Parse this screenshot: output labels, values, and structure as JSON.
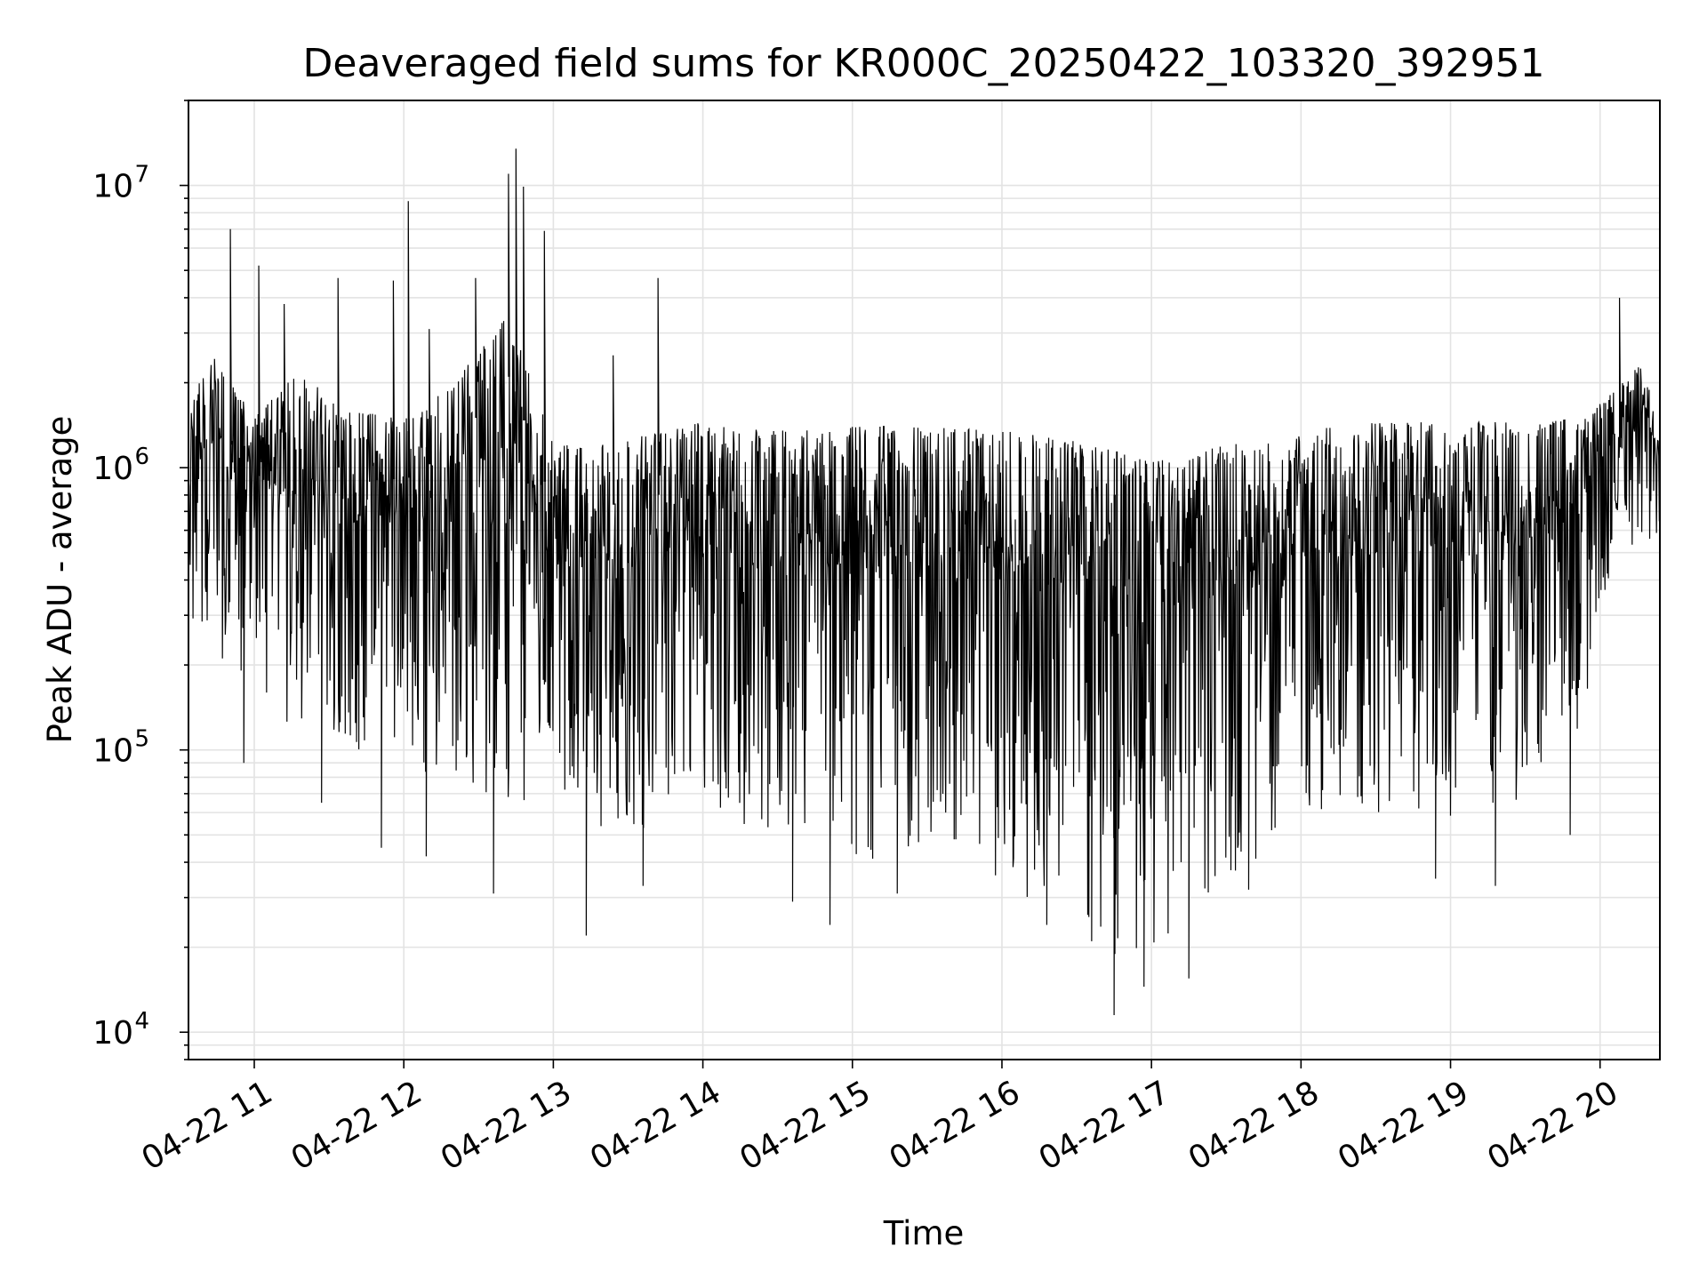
{
  "chart_data": {
    "type": "line",
    "title": "Deaveraged field sums for KR000C_20250422_103320_392951",
    "xlabel": "Time",
    "ylabel": "Peak ADU - average",
    "x_ticks": [
      "04-22 11",
      "04-22 12",
      "04-22 13",
      "04-22 14",
      "04-22 15",
      "04-22 16",
      "04-22 17",
      "04-22 18",
      "04-22 19",
      "04-22 20"
    ],
    "x_tick_hours": [
      11,
      12,
      13,
      14,
      15,
      16,
      17,
      18,
      19,
      20
    ],
    "xlim_hours": [
      10.56,
      20.4
    ],
    "y_scale": "log",
    "ylim": [
      8000,
      20000000
    ],
    "y_ticks": [
      {
        "base": "10",
        "exp": "4",
        "value": 10000
      },
      {
        "base": "10",
        "exp": "5",
        "value": 100000
      },
      {
        "base": "10",
        "exp": "6",
        "value": 1000000
      },
      {
        "base": "10",
        "exp": "7",
        "value": 10000000
      }
    ],
    "grid": true,
    "line_color": "#000000",
    "series": [
      {
        "envelope_top": [
          [
            10.56,
            1500000
          ],
          [
            10.7,
            2600000
          ],
          [
            11.0,
            1500000
          ],
          [
            11.3,
            2200000
          ],
          [
            11.6,
            1600000
          ],
          [
            12.0,
            1500000
          ],
          [
            12.3,
            1900000
          ],
          [
            12.7,
            3500000
          ],
          [
            13.0,
            1200000
          ],
          [
            13.3,
            1200000
          ],
          [
            13.6,
            1300000
          ],
          [
            14.0,
            1450000
          ],
          [
            14.5,
            1350000
          ],
          [
            15.0,
            1400000
          ],
          [
            15.5,
            1400000
          ],
          [
            16.0,
            1350000
          ],
          [
            16.5,
            1250000
          ],
          [
            17.0,
            1050000
          ],
          [
            17.5,
            1200000
          ],
          [
            18.0,
            1350000
          ],
          [
            18.5,
            1450000
          ],
          [
            19.0,
            1450000
          ],
          [
            19.5,
            1450000
          ],
          [
            19.9,
            1500000
          ],
          [
            20.1,
            1900000
          ],
          [
            20.3,
            2400000
          ],
          [
            20.4,
            1200000
          ]
        ],
        "envelope_bottom": [
          [
            10.56,
            300000
          ],
          [
            11.0,
            150000
          ],
          [
            11.5,
            100000
          ],
          [
            12.0,
            90000
          ],
          [
            12.5,
            70000
          ],
          [
            13.0,
            60000
          ],
          [
            13.5,
            50000
          ],
          [
            14.0,
            60000
          ],
          [
            14.5,
            45000
          ],
          [
            15.0,
            40000
          ],
          [
            15.5,
            40000
          ],
          [
            16.0,
            30000
          ],
          [
            16.5,
            25000
          ],
          [
            16.8,
            17000
          ],
          [
            17.0,
            18000
          ],
          [
            17.3,
            28000
          ],
          [
            17.7,
            40000
          ],
          [
            18.0,
            60000
          ],
          [
            18.5,
            60000
          ],
          [
            19.0,
            55000
          ],
          [
            19.5,
            65000
          ],
          [
            19.9,
            130000
          ],
          [
            20.1,
            550000
          ],
          [
            20.4,
            500000
          ]
        ],
        "spikes": [
          [
            10.84,
            7000000
          ],
          [
            11.03,
            5200000
          ],
          [
            11.2,
            3800000
          ],
          [
            11.56,
            4700000
          ],
          [
            11.93,
            4600000
          ],
          [
            12.03,
            8800000
          ],
          [
            12.17,
            3100000
          ],
          [
            12.48,
            4700000
          ],
          [
            12.7,
            11000000
          ],
          [
            12.75,
            13500000
          ],
          [
            12.8,
            9900000
          ],
          [
            12.94,
            6900000
          ],
          [
            13.4,
            2500000
          ],
          [
            13.7,
            4700000
          ],
          [
            13.7,
            1700000
          ],
          [
            20.13,
            4000000
          ]
        ],
        "dips": [
          [
            10.93,
            90000
          ],
          [
            11.45,
            65000
          ],
          [
            11.85,
            45000
          ],
          [
            12.15,
            42000
          ],
          [
            12.6,
            31000
          ],
          [
            13.22,
            22000
          ],
          [
            13.6,
            33000
          ],
          [
            14.6,
            29000
          ],
          [
            14.85,
            24000
          ],
          [
            15.3,
            31000
          ],
          [
            16.3,
            24000
          ],
          [
            16.6,
            21000
          ],
          [
            16.75,
            11500
          ],
          [
            16.95,
            14500
          ],
          [
            17.25,
            15500
          ],
          [
            17.65,
            32000
          ],
          [
            18.9,
            35000
          ],
          [
            19.3,
            33000
          ],
          [
            19.8,
            50000
          ]
        ]
      }
    ]
  }
}
